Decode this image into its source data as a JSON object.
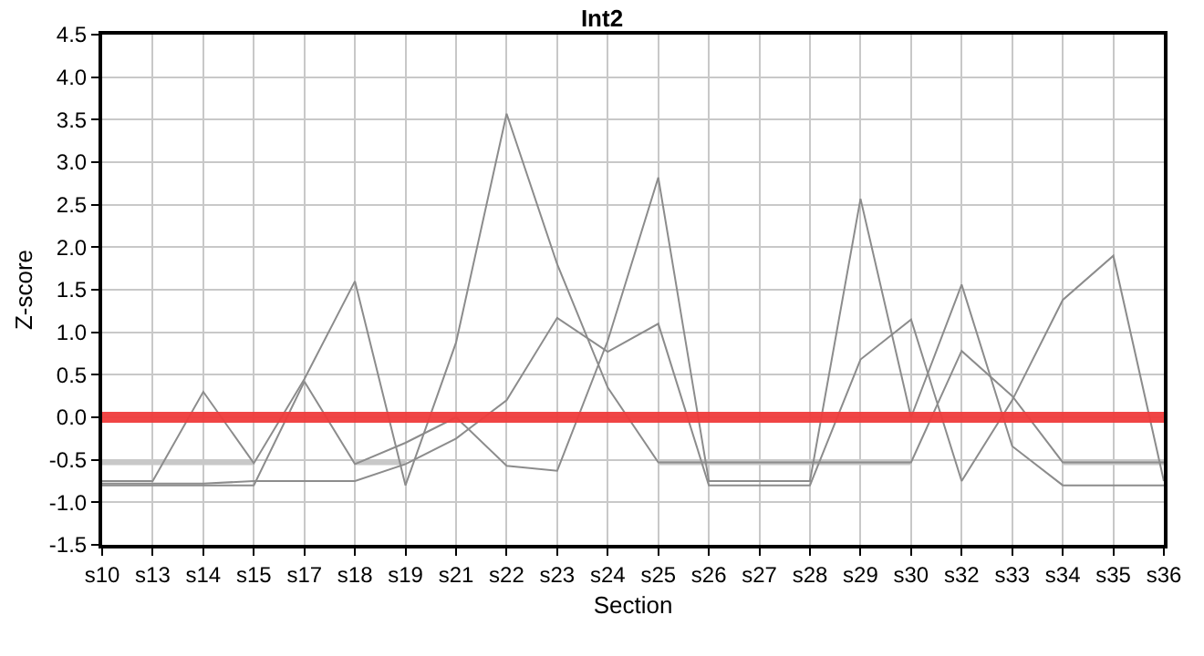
{
  "chart_data": {
    "type": "line",
    "title": "Int2",
    "xlabel": "Section",
    "ylabel": "Z-score",
    "categories": [
      "s10",
      "s13",
      "s14",
      "s15",
      "s17",
      "s18",
      "s19",
      "s21",
      "s22",
      "s23",
      "s24",
      "s25",
      "s26",
      "s27",
      "s28",
      "s29",
      "s30",
      "s32",
      "s33",
      "s34",
      "s35",
      "s36"
    ],
    "series": [
      {
        "color": "#c8c8c8",
        "values": [
          -0.53,
          -0.53,
          -0.53,
          -0.53,
          null,
          -0.53,
          -0.53,
          null,
          null,
          null,
          null,
          -0.53,
          -0.53,
          -0.53,
          -0.53,
          -0.53,
          -0.53,
          null,
          null,
          -0.53,
          -0.53,
          -0.53
        ]
      },
      {
        "color": "#8c8c8c",
        "values": [
          -0.75,
          -0.75,
          0.3,
          -0.54,
          0.45,
          1.6,
          -0.8,
          0.88,
          3.57,
          1.8,
          0.35,
          -0.53,
          -0.53,
          -0.53,
          -0.53,
          -0.53,
          -0.53,
          0.78,
          0.25,
          -0.53,
          -0.53,
          -0.53
        ]
      },
      {
        "color": "#8c8c8c",
        "values": [
          -0.8,
          -0.8,
          -0.8,
          -0.8,
          0.42,
          -0.55,
          -0.3,
          0.0,
          -0.57,
          -0.63,
          0.9,
          2.82,
          -0.75,
          -0.75,
          -0.75,
          2.57,
          0.0,
          1.56,
          -0.34,
          -0.8,
          -0.8,
          -0.8
        ]
      },
      {
        "color": "#8c8c8c",
        "values": [
          -0.78,
          -0.78,
          -0.78,
          -0.75,
          -0.75,
          -0.75,
          -0.55,
          -0.25,
          0.2,
          1.17,
          0.77,
          1.1,
          -0.8,
          -0.8,
          -0.8,
          0.68,
          1.15,
          -0.75,
          0.2,
          1.38,
          1.9,
          -0.75
        ]
      }
    ],
    "ref_lines": [
      {
        "axis": "y",
        "value": 0,
        "color": "#f03c3c"
      }
    ],
    "ylim": [
      -1.5,
      4.5
    ],
    "yticks": [
      -1.5,
      {
        "value": -1,
        "label": "-1.0"
      },
      -0.5,
      {
        "value": 0,
        "label": "0.0"
      },
      0.5,
      {
        "value": 1,
        "label": "1.0"
      },
      1.5,
      {
        "value": 2,
        "label": "2.0"
      },
      2.5,
      {
        "value": 3,
        "label": "3.0"
      },
      3.5,
      {
        "value": 4,
        "label": "4.0"
      },
      4.5
    ],
    "grid": true,
    "marker": "none",
    "line_style": "solid"
  }
}
